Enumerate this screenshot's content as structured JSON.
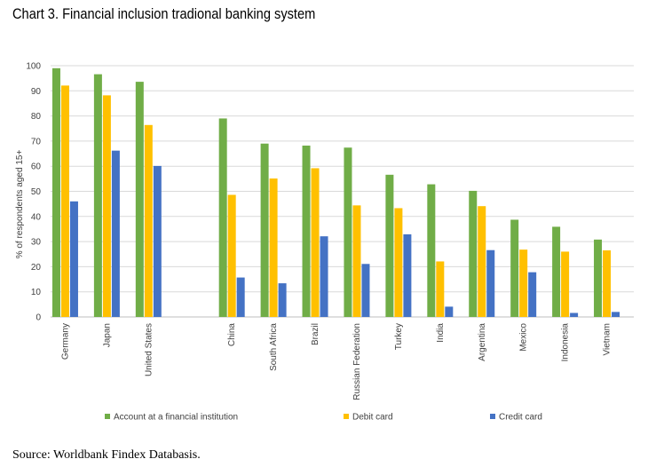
{
  "title": "Chart 3. Financial inclusion tradional banking system",
  "source": "Source: Worldbank Findex Databasis.",
  "chart_data": {
    "type": "bar",
    "ylabel": "% of respondents aged 15+",
    "ylim": [
      0,
      100
    ],
    "yticks": [
      0,
      10,
      20,
      30,
      40,
      50,
      60,
      70,
      80,
      90,
      100
    ],
    "grid": true,
    "legend": "bottom",
    "categories": [
      "Germany",
      "Japan",
      "United States",
      "",
      "China",
      "South Africa",
      "Brazil",
      "Russian Federation",
      "Turkey",
      "India",
      "Argentina",
      "Mexico",
      "Indonesia",
      "Vietnam"
    ],
    "series": [
      {
        "name": "Account at a financial institution",
        "color": "#70AD47",
        "values": [
          99,
          96.6,
          93.6,
          null,
          79,
          69,
          68.2,
          67.4,
          56.6,
          52.8,
          50.2,
          38.7,
          35.9,
          30.8
        ]
      },
      {
        "name": "Debit card",
        "color": "#FFC000",
        "values": [
          92.1,
          88.2,
          76.4,
          null,
          48.6,
          55.1,
          59.2,
          44.4,
          43.3,
          22.1,
          44.1,
          26.8,
          26,
          26.5
        ]
      },
      {
        "name": "Credit card",
        "color": "#4472C4",
        "values": [
          46,
          66.2,
          60.1,
          null,
          15.7,
          13.4,
          32.1,
          21.1,
          32.9,
          4.1,
          26.6,
          17.8,
          1.6,
          2
        ]
      }
    ]
  }
}
